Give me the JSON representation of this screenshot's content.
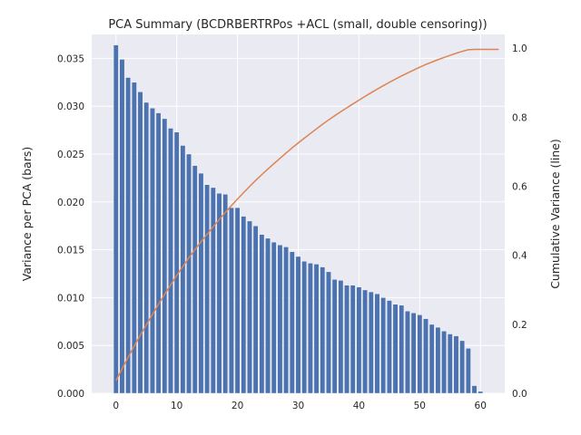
{
  "chart_data": {
    "type": "bar",
    "title": "PCA Summary (BCDRBERTRPos +ACL (small, double censoring))",
    "xlabel": "",
    "ylabel": "Variance per PCA (bars)",
    "y2label": "Cumulative Variance (line)",
    "xlim": [
      -4,
      64
    ],
    "ylim": [
      0,
      0.0375
    ],
    "y2lim": [
      0,
      1.04
    ],
    "x_ticks": [
      0,
      10,
      20,
      30,
      40,
      50,
      60
    ],
    "y_ticks": [
      0.0,
      0.005,
      0.01,
      0.015,
      0.02,
      0.025,
      0.03,
      0.035
    ],
    "y2_ticks": [
      0.0,
      0.2,
      0.4,
      0.6,
      0.8,
      1.0
    ],
    "grid": true,
    "background": "#eaeaf2",
    "series": [
      {
        "kind": "bar",
        "color": "#4c72b0",
        "x": [
          0,
          1,
          2,
          3,
          4,
          5,
          6,
          7,
          8,
          9,
          10,
          11,
          12,
          13,
          14,
          15,
          16,
          17,
          18,
          19,
          20,
          21,
          22,
          23,
          24,
          25,
          26,
          27,
          28,
          29,
          30,
          31,
          32,
          33,
          34,
          35,
          36,
          37,
          38,
          39,
          40,
          41,
          42,
          43,
          44,
          45,
          46,
          47,
          48,
          49,
          50,
          51,
          52,
          53,
          54,
          55,
          56,
          57,
          58,
          59,
          60,
          61,
          62,
          63
        ],
        "values": [
          0.0364,
          0.0349,
          0.033,
          0.0325,
          0.0315,
          0.0304,
          0.0298,
          0.0293,
          0.0287,
          0.0277,
          0.0273,
          0.0259,
          0.025,
          0.0238,
          0.023,
          0.0218,
          0.0215,
          0.0209,
          0.0208,
          0.0194,
          0.0194,
          0.0185,
          0.018,
          0.0175,
          0.0166,
          0.0162,
          0.0158,
          0.0155,
          0.0153,
          0.0148,
          0.0143,
          0.0138,
          0.0136,
          0.0135,
          0.0132,
          0.0127,
          0.0119,
          0.0118,
          0.0113,
          0.0113,
          0.0111,
          0.0108,
          0.0106,
          0.0104,
          0.01,
          0.0097,
          0.0093,
          0.0092,
          0.0086,
          0.0084,
          0.0082,
          0.0078,
          0.0072,
          0.0069,
          0.0065,
          0.0062,
          0.006,
          0.0055,
          0.0047,
          0.0008,
          0.0002,
          0.0,
          0.0,
          0.0
        ]
      },
      {
        "kind": "line",
        "axis": "right",
        "color": "#dd8452",
        "x": [
          0,
          1,
          2,
          3,
          4,
          5,
          6,
          7,
          8,
          9,
          10,
          11,
          12,
          13,
          14,
          15,
          16,
          17,
          18,
          19,
          20,
          21,
          22,
          23,
          24,
          25,
          26,
          27,
          28,
          29,
          30,
          31,
          32,
          33,
          34,
          35,
          36,
          37,
          38,
          39,
          40,
          41,
          42,
          43,
          44,
          45,
          46,
          47,
          48,
          49,
          50,
          51,
          52,
          53,
          54,
          55,
          56,
          57,
          58,
          59,
          60,
          61,
          62,
          63
        ],
        "values": [
          0.0364,
          0.0713,
          0.1043,
          0.1368,
          0.1683,
          0.1987,
          0.2285,
          0.2578,
          0.2865,
          0.3142,
          0.3415,
          0.3674,
          0.3924,
          0.4162,
          0.4392,
          0.461,
          0.4825,
          0.5034,
          0.5242,
          0.5436,
          0.563,
          0.5815,
          0.5995,
          0.617,
          0.6336,
          0.6498,
          0.6656,
          0.6811,
          0.6964,
          0.7112,
          0.7255,
          0.7393,
          0.7529,
          0.7664,
          0.7796,
          0.7923,
          0.8042,
          0.816,
          0.8273,
          0.8386,
          0.8497,
          0.8605,
          0.8711,
          0.8815,
          0.8915,
          0.9012,
          0.9105,
          0.9197,
          0.9283,
          0.9367,
          0.9449,
          0.9527,
          0.9599,
          0.9668,
          0.9733,
          0.9795,
          0.9855,
          0.991,
          0.9957,
          0.9965,
          0.9967,
          0.9967,
          0.9967,
          0.9967
        ]
      }
    ]
  }
}
